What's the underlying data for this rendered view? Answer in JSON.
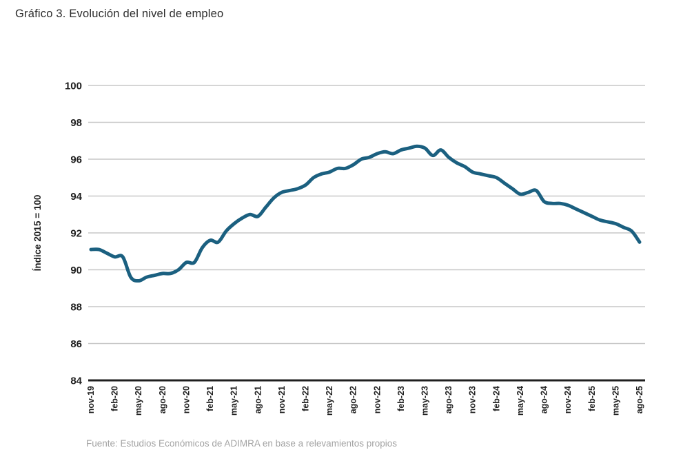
{
  "title": "Gráfico 3. Evolución del nivel de empleo",
  "source": "Fuente: Estudios Económicos de ADIMRA en base a relevamientos propios",
  "chart_data": {
    "type": "line",
    "title": "Gráfico 3. Evolución del nivel de empleo",
    "xlabel": "",
    "ylabel": "Índice 2015 = 100",
    "ylim": [
      84,
      100
    ],
    "yticks": [
      84,
      86,
      88,
      90,
      92,
      94,
      96,
      98,
      100
    ],
    "grid": true,
    "legend_position": "none",
    "line_color": "#1b6080",
    "grid_color": "#c7c7c7",
    "axis_color": "#1f1f1f",
    "tick_label_color": "#1f1f1f",
    "xtick_every": 3,
    "x": [
      "nov-19",
      "dic-19",
      "ene-20",
      "feb-20",
      "mar-20",
      "abr-20",
      "may-20",
      "jun-20",
      "jul-20",
      "ago-20",
      "sep-20",
      "oct-20",
      "nov-20",
      "dic-20",
      "ene-21",
      "feb-21",
      "mar-21",
      "abr-21",
      "may-21",
      "jun-21",
      "jul-21",
      "ago-21",
      "sep-21",
      "oct-21",
      "nov-21",
      "dic-21",
      "ene-22",
      "feb-22",
      "mar-22",
      "abr-22",
      "may-22",
      "jun-22",
      "jul-22",
      "ago-22",
      "sep-22",
      "oct-22",
      "nov-22",
      "dic-22",
      "ene-23",
      "feb-23",
      "mar-23",
      "abr-23",
      "may-23",
      "jun-23",
      "jul-23",
      "ago-23",
      "sep-23",
      "oct-23",
      "nov-23",
      "dic-23",
      "ene-24",
      "feb-24",
      "mar-24",
      "abr-24",
      "may-24",
      "jun-24",
      "jul-24",
      "ago-24",
      "sep-24",
      "oct-24",
      "nov-24",
      "dic-24",
      "ene-25",
      "feb-25",
      "mar-25",
      "abr-25",
      "may-25",
      "jun-25",
      "jul-25",
      "ago-25"
    ],
    "values": [
      91.1,
      91.1,
      90.9,
      90.7,
      90.7,
      89.6,
      89.4,
      89.6,
      89.7,
      89.8,
      89.8,
      90.0,
      90.4,
      90.4,
      91.2,
      91.6,
      91.5,
      92.1,
      92.5,
      92.8,
      93.0,
      92.9,
      93.4,
      93.9,
      94.2,
      94.3,
      94.4,
      94.6,
      95.0,
      95.2,
      95.3,
      95.5,
      95.5,
      95.7,
      96.0,
      96.1,
      96.3,
      96.4,
      96.3,
      96.5,
      96.6,
      96.7,
      96.6,
      96.2,
      96.5,
      96.1,
      95.8,
      95.6,
      95.3,
      95.2,
      95.1,
      95.0,
      94.7,
      94.4,
      94.1,
      94.2,
      94.3,
      93.7,
      93.6,
      93.6,
      93.5,
      93.3,
      93.1,
      92.9,
      92.7,
      92.6,
      92.5,
      92.3,
      92.1,
      91.5
    ]
  }
}
